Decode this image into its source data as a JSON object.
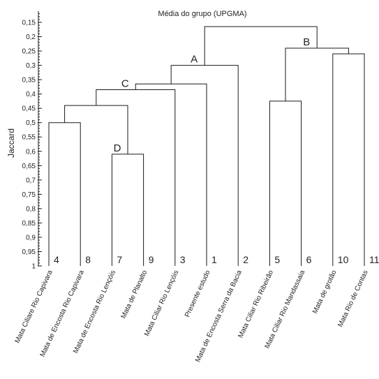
{
  "chart_data": {
    "type": "dendrogram",
    "title": "Média do grupo (UPGMA)",
    "ylabel": "Jaccard",
    "y_axis": {
      "ylim": [
        0.15,
        1
      ],
      "inverted": true,
      "ticks": [
        "0,15",
        "0,2",
        "0,25",
        "0,3",
        "0,35",
        "0,4",
        "0,45",
        "0,5",
        "0,55",
        "0,6",
        "0,65",
        "0,7",
        "0,75",
        "0,8",
        "0,85",
        "0,9",
        "0,95",
        "1"
      ],
      "tick_values": [
        0.15,
        0.2,
        0.25,
        0.3,
        0.35,
        0.4,
        0.45,
        0.5,
        0.55,
        0.6,
        0.65,
        0.7,
        0.75,
        0.8,
        0.85,
        0.9,
        0.95,
        1.0
      ]
    },
    "leaves": [
      {
        "number": "4",
        "name": "Mata Ciliare Rio Capivara"
      },
      {
        "number": "8",
        "name": "Mata de Encosta Rio Capivara"
      },
      {
        "number": "7",
        "name": "Mata de Encosta Rio Lençóis"
      },
      {
        "number": "9",
        "name": "Mata de Planalto"
      },
      {
        "number": "3",
        "name": "Mata Ciliar Rio Lençóis"
      },
      {
        "number": "1",
        "name": "Presente estudo"
      },
      {
        "number": "2",
        "name": "Mata de Encosta Serra da Bacia"
      },
      {
        "number": "5",
        "name": "Mata Ciliar Rio Ribeirão"
      },
      {
        "number": "6",
        "name": "Mata Ciliar Rio Mandassaia"
      },
      {
        "number": "10",
        "name": "Mata de grotão"
      },
      {
        "number": "11",
        "name": "Mata Rio de Contas"
      }
    ],
    "merges": [
      {
        "left": 0,
        "right": 1,
        "similarity": 0.5
      },
      {
        "left": 2,
        "right": 3,
        "similarity": 0.61
      },
      {
        "left": 11,
        "right": 12,
        "similarity": 0.44
      },
      {
        "left": 13,
        "right": 4,
        "similarity": 0.385
      },
      {
        "left": 14,
        "right": 5,
        "similarity": 0.365
      },
      {
        "left": 15,
        "right": 6,
        "similarity": 0.3
      },
      {
        "left": 7,
        "right": 8,
        "similarity": 0.425
      },
      {
        "left": 9,
        "right": 10,
        "similarity": 0.26
      },
      {
        "left": 17,
        "right": 18,
        "similarity": 0.24
      },
      {
        "left": 16,
        "right": 19,
        "similarity": 0.165
      }
    ],
    "cluster_labels": [
      {
        "label": "A",
        "node": 16
      },
      {
        "label": "B",
        "node": 19
      },
      {
        "label": "C",
        "node": 14
      },
      {
        "label": "D",
        "node": 12
      }
    ]
  }
}
